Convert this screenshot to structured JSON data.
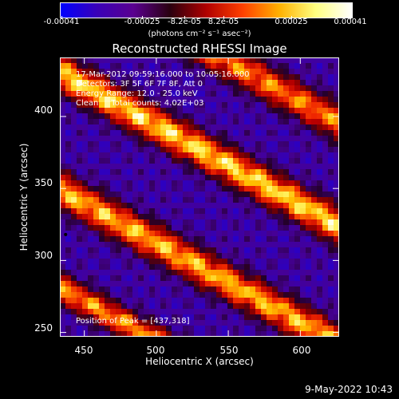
{
  "colorbar": {
    "tick_labels": [
      "-0.00041",
      "-0.00025",
      "-8.2e-05",
      "8.2e-05",
      "0.00025",
      "0.00041"
    ],
    "units_label": "(photons cm⁻² s⁻¹ asec⁻²)",
    "colors": [
      "#0000ff",
      "#3a00b8",
      "#5a0090",
      "#2a0010",
      "#b00000",
      "#ff4000",
      "#ffb000",
      "#ffff80",
      "#ffffff"
    ]
  },
  "title": "Reconstructed RHESSI Image",
  "annotations": {
    "time_range": "17-Mar-2012 09:59:16.000 to 10:05:16.000",
    "detectors": "Detectors: 3F 5F 6F 7F 8F, Att 0",
    "energy_range": "Energy Range: 12.0 - 25.0 keV",
    "method": "Clean     Total counts: 4.02E+03",
    "peak_position": "Position of Peak = [437,318]"
  },
  "x_axis": {
    "label": "Heliocentric X (arcsec)",
    "ticks": [
      "450",
      "500",
      "550",
      "600"
    ],
    "range": [
      433,
      627
    ]
  },
  "y_axis": {
    "label": "Heliocentric Y (arcsec)",
    "ticks": [
      "400",
      "350",
      "300",
      "250"
    ],
    "range": [
      247,
      441
    ]
  },
  "footer_date": "9-May-2022 10:43"
}
